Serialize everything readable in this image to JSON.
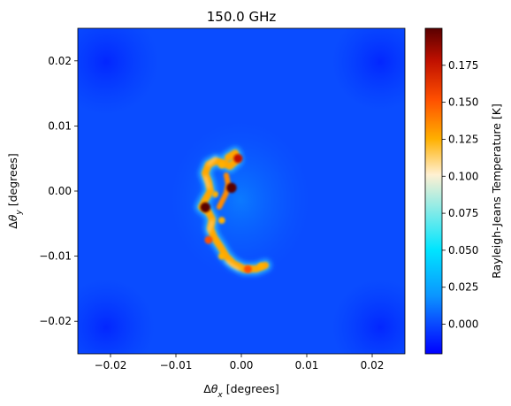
{
  "chart_data": {
    "type": "heatmap",
    "title": "150.0 GHz",
    "xlabel": "Δθ_x [degrees]",
    "ylabel": "Δθ_y [degrees]",
    "colorbar_label": "Rayleigh-Jeans Temperature [K]",
    "xlim": [
      -0.025,
      0.025
    ],
    "ylim": [
      -0.025,
      0.025
    ],
    "xticks": [
      -0.02,
      -0.01,
      0.0,
      0.01,
      0.02
    ],
    "xtick_labels": [
      "−0.02",
      "−0.01",
      "0.00",
      "0.01",
      "0.02"
    ],
    "yticks": [
      -0.02,
      -0.01,
      0.0,
      0.01,
      0.02
    ],
    "ytick_labels": [
      "−0.02",
      "−0.01",
      "0.00",
      "0.01",
      "0.02"
    ],
    "clim": [
      -0.02,
      0.2
    ],
    "colorbar_ticks": [
      0.0,
      0.025,
      0.05,
      0.075,
      0.1,
      0.125,
      0.15,
      0.175
    ],
    "colorbar_tick_labels": [
      "0.000",
      "0.025",
      "0.050",
      "0.075",
      "0.100",
      "0.125",
      "0.150",
      "0.175"
    ],
    "background_value": 0.0,
    "colormap": [
      "#0000ff",
      "#0a50ff",
      "#0b96ff",
      "#00e5ff",
      "#fff0d2",
      "#ffb000",
      "#ff5000",
      "#c01000",
      "#5a0000"
    ],
    "features": [
      {
        "x": -0.0005,
        "y": 0.005,
        "value": 0.17
      },
      {
        "x": -0.003,
        "y": 0.004,
        "value": 0.13
      },
      {
        "x": -0.0015,
        "y": 0.0005,
        "value": 0.19
      },
      {
        "x": -0.004,
        "y": -0.0005,
        "value": 0.12
      },
      {
        "x": -0.0055,
        "y": -0.0025,
        "value": 0.19
      },
      {
        "x": -0.003,
        "y": -0.0045,
        "value": 0.13
      },
      {
        "x": -0.005,
        "y": -0.0075,
        "value": 0.15
      },
      {
        "x": -0.003,
        "y": -0.01,
        "value": 0.13
      },
      {
        "x": 0.001,
        "y": -0.012,
        "value": 0.15
      },
      {
        "x": 0.003,
        "y": -0.0115,
        "value": 0.12
      }
    ]
  }
}
